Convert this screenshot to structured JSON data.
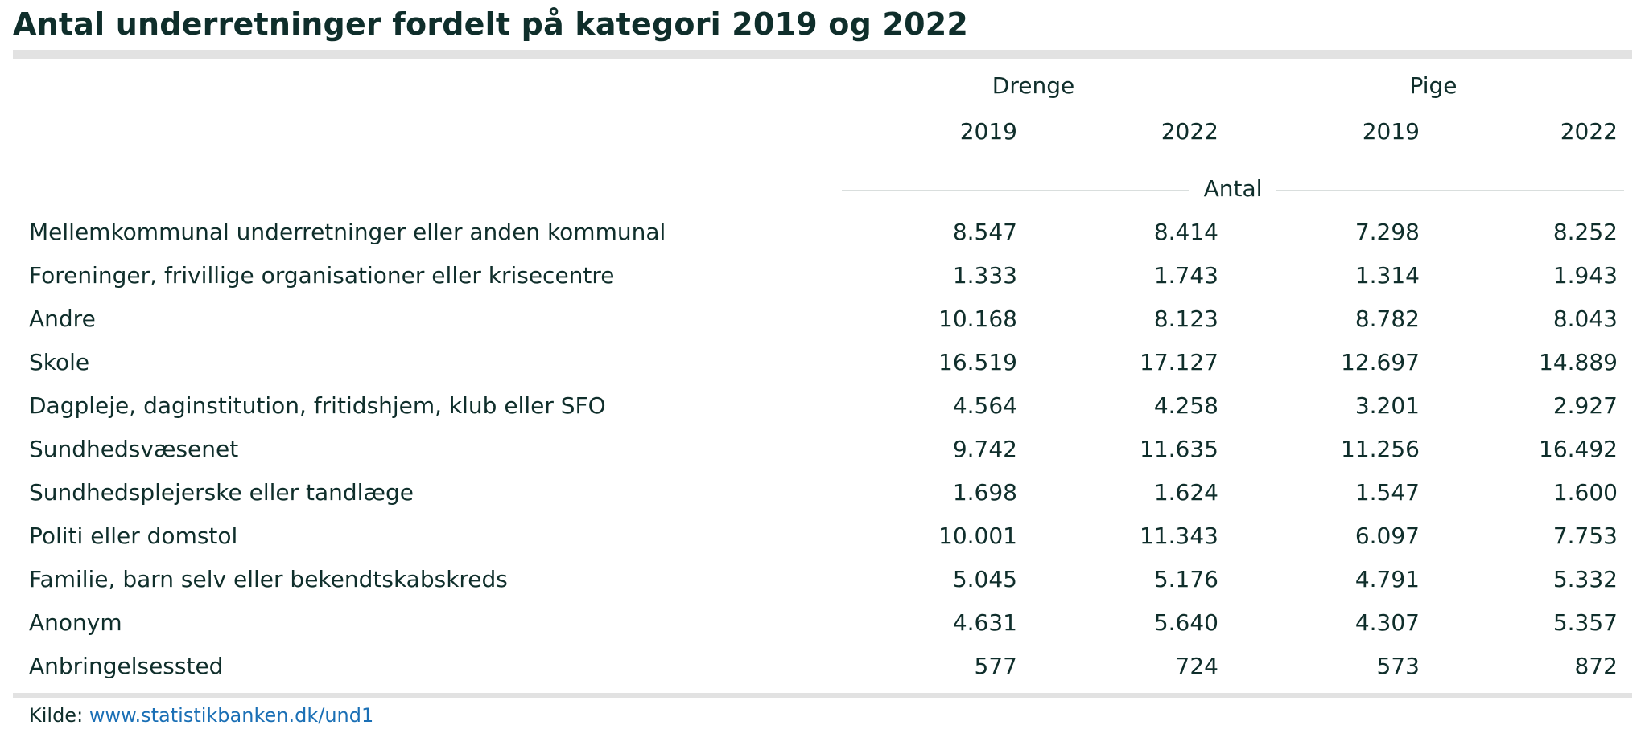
{
  "title": "Antal underretninger fordelt på kategori 2019 og 2022",
  "unit_label": "Antal",
  "source": {
    "prefix": "Kilde:",
    "link_text": "www.statistikbanken.dk/und1"
  },
  "colors": {
    "text": "#0f2e2b",
    "rule": "#e2e2e2",
    "thin_rule": "#d9dedd",
    "link": "#1a6fb5"
  },
  "chart_data": {
    "type": "table",
    "title": "Antal underretninger fordelt på kategori 2019 og 2022",
    "unit": "Antal",
    "column_groups": [
      {
        "name": "Drenge",
        "years": [
          "2019",
          "2022"
        ]
      },
      {
        "name": "Pige",
        "years": [
          "2019",
          "2022"
        ]
      }
    ],
    "rows": [
      {
        "label": "Mellemkommunal underretninger eller anden kommunal",
        "values": [
          "8.547",
          "8.414",
          "7.298",
          "8.252"
        ]
      },
      {
        "label": "Foreninger, frivillige organisationer eller krisecentre",
        "values": [
          "1.333",
          "1.743",
          "1.314",
          "1.943"
        ]
      },
      {
        "label": "Andre",
        "values": [
          "10.168",
          "8.123",
          "8.782",
          "8.043"
        ]
      },
      {
        "label": "Skole",
        "values": [
          "16.519",
          "17.127",
          "12.697",
          "14.889"
        ]
      },
      {
        "label": "Dagpleje, daginstitution, fritidshjem, klub eller SFO",
        "values": [
          "4.564",
          "4.258",
          "3.201",
          "2.927"
        ]
      },
      {
        "label": "Sundhedsvæsenet",
        "values": [
          "9.742",
          "11.635",
          "11.256",
          "16.492"
        ]
      },
      {
        "label": "Sundhedsplejerske eller tandlæge",
        "values": [
          "1.698",
          "1.624",
          "1.547",
          "1.600"
        ]
      },
      {
        "label": "Politi eller domstol",
        "values": [
          "10.001",
          "11.343",
          "6.097",
          "7.753"
        ]
      },
      {
        "label": "Familie, barn selv eller bekendtskabskreds",
        "values": [
          "5.045",
          "5.176",
          "4.791",
          "5.332"
        ]
      },
      {
        "label": "Anonym",
        "values": [
          "4.631",
          "5.640",
          "4.307",
          "5.357"
        ]
      },
      {
        "label": "Anbringelsessted",
        "values": [
          "577",
          "724",
          "573",
          "872"
        ]
      }
    ]
  }
}
